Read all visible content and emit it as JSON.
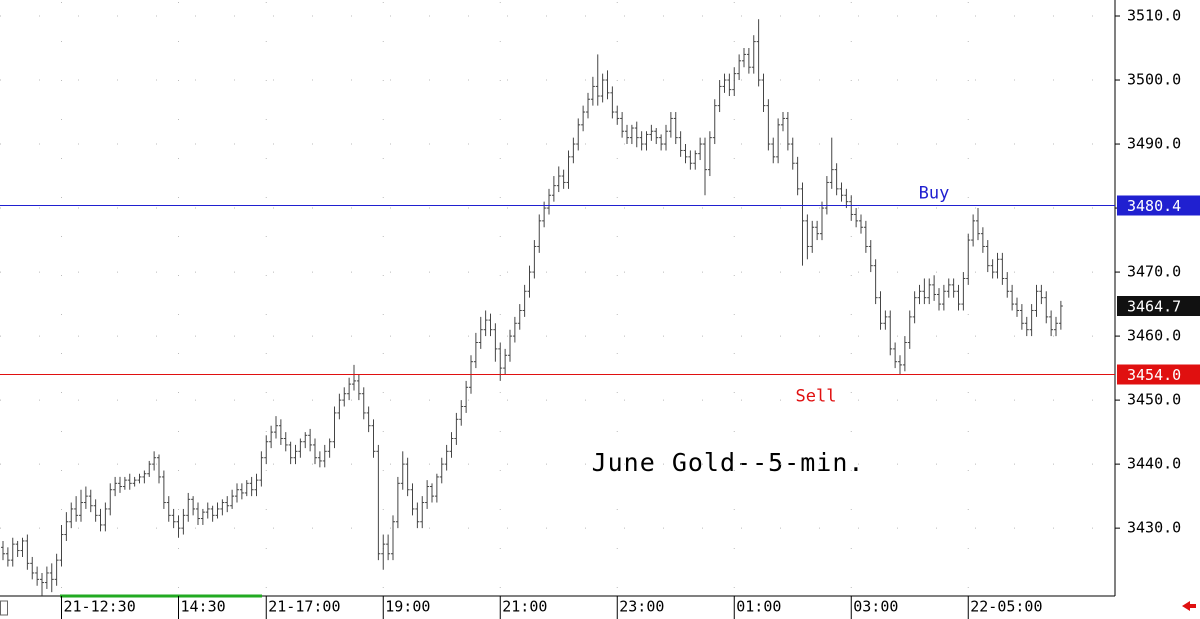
{
  "chart_data": {
    "type": "ohlc",
    "title": "June Gold--5-min.",
    "categories": [
      null,
      null,
      null,
      null,
      null,
      null,
      null,
      null,
      null,
      null,
      null,
      null,
      "21-12:30",
      null,
      null,
      null,
      null,
      null,
      null,
      null,
      null,
      null,
      null,
      null,
      null,
      null,
      null,
      null,
      null,
      null,
      null,
      null,
      null,
      null,
      null,
      null,
      "14:30",
      null,
      null,
      null,
      null,
      null,
      null,
      null,
      null,
      null,
      null,
      null,
      null,
      null,
      null,
      null,
      null,
      null,
      "21-17:00",
      null,
      null,
      null,
      null,
      null,
      null,
      null,
      null,
      null,
      null,
      null,
      null,
      null,
      null,
      null,
      null,
      null,
      null,
      null,
      null,
      null,
      null,
      null,
      "19:00",
      null,
      null,
      null,
      null,
      null,
      null,
      null,
      null,
      null,
      null,
      null,
      null,
      null,
      null,
      null,
      null,
      null,
      null,
      null,
      null,
      null,
      null,
      null,
      "21:00",
      null,
      null,
      null,
      null,
      null,
      null,
      null,
      null,
      null,
      null,
      null,
      null,
      null,
      null,
      null,
      null,
      null,
      null,
      null,
      null,
      null,
      null,
      null,
      "23:00",
      null,
      null,
      null,
      null,
      null,
      null,
      null,
      null,
      null,
      null,
      null,
      null,
      null,
      null,
      null,
      null,
      null,
      null,
      null,
      null,
      null,
      null,
      null,
      "01:00",
      null,
      null,
      null,
      null,
      null,
      null,
      null,
      null,
      null,
      null,
      null,
      null,
      null,
      null,
      null,
      null,
      null,
      null,
      null,
      null,
      null,
      null,
      null,
      "03:00",
      null,
      null,
      null,
      null,
      null,
      null,
      null,
      null,
      null,
      null,
      null,
      null,
      null,
      null,
      null,
      null,
      null,
      null,
      null,
      null,
      null,
      null,
      null,
      "22-05:00",
      null,
      null,
      null,
      null,
      null,
      null,
      null,
      null,
      null,
      null,
      null,
      null,
      null,
      null,
      null,
      null,
      null,
      null,
      null
    ],
    "open": [
      3427,
      3426,
      3425,
      3427.5,
      3426.5,
      3428,
      3424.5,
      3423,
      3422,
      3421.5,
      3423,
      3422,
      3425,
      3429,
      3431,
      3433,
      3432,
      3434,
      3435,
      3433.5,
      3432,
      3430.5,
      3433,
      3436,
      3437,
      3436.5,
      3437.5,
      3437,
      3437.5,
      3438,
      3438.5,
      3440,
      3441,
      3438,
      3434,
      3432,
      3431,
      3430,
      3432,
      3434.5,
      3433,
      3431.5,
      3432.5,
      3433,
      3432,
      3433,
      3434,
      3433.5,
      3435,
      3436,
      3435.5,
      3437,
      3436,
      3437.5,
      3441,
      3443.5,
      3445,
      3446,
      3444,
      3443,
      3441,
      3442,
      3443.5,
      3444.5,
      3443,
      3441,
      3440.5,
      3442,
      3443.5,
      3448,
      3450,
      3451,
      3452.5,
      3453,
      3451,
      3448,
      3446,
      3442,
      3426,
      3427.5,
      3426,
      3431,
      3437,
      3440,
      3436,
      3433,
      3431,
      3434,
      3436.5,
      3435,
      3438,
      3440,
      3442,
      3444,
      3447,
      3449,
      3452,
      3456,
      3459,
      3461,
      3462.5,
      3461,
      3458,
      3455,
      3457,
      3460,
      3462,
      3464,
      3467,
      3470,
      3474,
      3478,
      3480,
      3482,
      3483.5,
      3485,
      3484,
      3488,
      3490,
      3493,
      3495,
      3497,
      3499,
      3497.5,
      3500,
      3498,
      3495,
      3494,
      3492,
      3491,
      3492.5,
      3491,
      3490,
      3491.5,
      3492,
      3491,
      3490,
      3492,
      3494,
      3491,
      3489,
      3488,
      3487,
      3488.5,
      3490,
      3486,
      3491,
      3496,
      3499,
      3500,
      3498.5,
      3501,
      3503,
      3504,
      3502,
      3506,
      3500,
      3496,
      3490,
      3488,
      3493,
      3494,
      3490,
      3487,
      3483,
      3478,
      3474,
      3477,
      3476,
      3480,
      3484,
      3486,
      3483,
      3482,
      3481,
      3479,
      3478,
      3477,
      3474,
      3471,
      3466,
      3462,
      3463,
      3458,
      3456,
      3455.5,
      3459,
      3463,
      3466,
      3467,
      3466,
      3468,
      3466.5,
      3465,
      3467,
      3468,
      3467,
      3465,
      3469,
      3475,
      3478,
      3476,
      3474,
      3471,
      3470,
      3472,
      3469,
      3467,
      3465,
      3464,
      3462,
      3461,
      3464,
      3467,
      3466,
      3463,
      3461,
      3462
    ],
    "high": [
      3428,
      3427,
      3428.5,
      3428,
      3428.5,
      3429,
      3425.5,
      3424,
      3423,
      3424,
      3424.5,
      3426,
      3430.5,
      3432.5,
      3434,
      3435,
      3436,
      3436.5,
      3436,
      3434.5,
      3433,
      3434,
      3437,
      3438,
      3438,
      3438,
      3438.5,
      3438,
      3438.5,
      3439,
      3440.5,
      3442,
      3441.5,
      3439,
      3435,
      3433,
      3432,
      3433,
      3435.5,
      3435,
      3434,
      3433,
      3434,
      3433.5,
      3434,
      3434.5,
      3435,
      3436,
      3437,
      3437,
      3437.5,
      3438,
      3438.5,
      3442,
      3444.5,
      3446,
      3447.5,
      3447,
      3445,
      3443.5,
      3443,
      3444,
      3445,
      3445.5,
      3444,
      3442,
      3443,
      3444,
      3449,
      3451,
      3452,
      3453.5,
      3455.5,
      3454,
      3452,
      3449,
      3447,
      3443,
      3429,
      3429,
      3432,
      3438,
      3442,
      3441,
      3437,
      3434,
      3435,
      3437.5,
      3437,
      3438.5,
      3441,
      3443,
      3445,
      3448,
      3450,
      3453,
      3457,
      3460.5,
      3463,
      3464,
      3463.5,
      3462,
      3459,
      3458,
      3461,
      3463,
      3465,
      3468,
      3471,
      3475,
      3479,
      3481,
      3483,
      3485,
      3486.5,
      3486,
      3489,
      3491,
      3494,
      3496,
      3498,
      3500.5,
      3504,
      3501,
      3501.5,
      3499,
      3496,
      3495,
      3493,
      3493,
      3493.5,
      3492,
      3492,
      3493,
      3492.5,
      3491.5,
      3493,
      3495,
      3495,
      3492,
      3490,
      3489,
      3489,
      3491,
      3491,
      3492,
      3497,
      3500,
      3501,
      3501,
      3502,
      3504,
      3505,
      3505,
      3507,
      3509.5,
      3501,
      3497,
      3491,
      3494,
      3495,
      3495,
      3491,
      3488,
      3484,
      3479,
      3478,
      3478,
      3481,
      3485,
      3491,
      3487,
      3484,
      3483,
      3482,
      3480,
      3479,
      3478,
      3475,
      3472,
      3467,
      3464,
      3464,
      3459,
      3457,
      3460,
      3464,
      3467,
      3468,
      3469,
      3469,
      3469.5,
      3467.5,
      3468,
      3469,
      3469,
      3468,
      3470,
      3476,
      3479,
      3480,
      3477,
      3475,
      3472,
      3473,
      3473,
      3470,
      3468,
      3466,
      3465,
      3463,
      3465,
      3468,
      3468,
      3467,
      3464,
      3463,
      3465.5
    ],
    "low": [
      3425,
      3424,
      3424,
      3425.5,
      3425.5,
      3423.5,
      3422,
      3421,
      3419.5,
      3420.5,
      3420,
      3421,
      3424,
      3428,
      3430,
      3431,
      3431,
      3433,
      3432.5,
      3431,
      3429.5,
      3429.5,
      3432,
      3435,
      3435.5,
      3436,
      3436,
      3436.5,
      3437,
      3437,
      3438,
      3439,
      3437,
      3433,
      3431,
      3430,
      3428.5,
      3429,
      3431,
      3432,
      3430.5,
      3430.5,
      3431.5,
      3431,
      3431.5,
      3432,
      3432.5,
      3433,
      3434,
      3434.5,
      3435,
      3435,
      3435,
      3436.5,
      3440,
      3442.5,
      3444,
      3443,
      3442,
      3440,
      3440,
      3441,
      3442.5,
      3442,
      3440,
      3439.5,
      3439.5,
      3441,
      3442.5,
      3447,
      3449,
      3450,
      3451.5,
      3450,
      3447,
      3445,
      3441,
      3425,
      3423.5,
      3425,
      3425,
      3430,
      3436,
      3435,
      3432,
      3430,
      3430,
      3433,
      3434,
      3434,
      3437,
      3439,
      3441,
      3443,
      3446,
      3448,
      3451,
      3455,
      3458,
      3460,
      3460,
      3456,
      3453,
      3454,
      3456,
      3459,
      3461,
      3463,
      3466,
      3469,
      3473,
      3477,
      3479,
      3481,
      3482.5,
      3483,
      3483,
      3487,
      3489,
      3492,
      3494,
      3496,
      3496,
      3496.5,
      3497,
      3494,
      3493,
      3491,
      3490,
      3490,
      3489.5,
      3489,
      3489,
      3490.5,
      3490,
      3489,
      3489,
      3491,
      3490,
      3488,
      3487,
      3486,
      3486,
      3487.5,
      3482,
      3485,
      3490,
      3495,
      3498,
      3497.5,
      3497.5,
      3500,
      3502,
      3501,
      3501,
      3499,
      3495,
      3489,
      3487,
      3487,
      3492,
      3489,
      3486,
      3482,
      3471,
      3472,
      3473,
      3475,
      3475,
      3479,
      3483,
      3482,
      3481,
      3480,
      3478,
      3477,
      3476,
      3473,
      3470,
      3465,
      3461,
      3461,
      3457,
      3455,
      3454,
      3454.5,
      3458,
      3462,
      3465,
      3465,
      3465,
      3465.5,
      3464,
      3464,
      3466,
      3466,
      3464,
      3464,
      3468,
      3474,
      3475,
      3473,
      3470,
      3469,
      3469,
      3468,
      3466,
      3464,
      3463,
      3461,
      3460,
      3460,
      3463,
      3465,
      3462,
      3460,
      3460,
      3461
    ],
    "close": [
      3426,
      3425,
      3427.5,
      3426.5,
      3428,
      3424.5,
      3423,
      3422,
      3421.5,
      3423,
      3422,
      3425,
      3429,
      3431,
      3433,
      3432,
      3434,
      3435,
      3433.5,
      3432,
      3430.5,
      3433,
      3436,
      3437,
      3436.5,
      3437.5,
      3437,
      3437.5,
      3438,
      3438.5,
      3440,
      3441,
      3438,
      3434,
      3432,
      3431,
      3430,
      3432,
      3434.5,
      3433,
      3431.5,
      3432.5,
      3433,
      3432,
      3433,
      3434,
      3433.5,
      3435,
      3436,
      3435.5,
      3437,
      3436,
      3437.5,
      3441,
      3443.5,
      3445,
      3446,
      3444,
      3443,
      3441,
      3442,
      3443.5,
      3444.5,
      3443,
      3441,
      3440.5,
      3442,
      3443.5,
      3448,
      3450,
      3451,
      3452.5,
      3453,
      3451,
      3448,
      3446,
      3442,
      3426,
      3427.5,
      3426,
      3431,
      3437,
      3440,
      3436,
      3433,
      3431,
      3434,
      3436.5,
      3435,
      3438,
      3440,
      3442,
      3444,
      3447,
      3449,
      3452,
      3456,
      3459,
      3461,
      3462.5,
      3461,
      3458,
      3455,
      3457,
      3460,
      3462,
      3464,
      3467,
      3470,
      3474,
      3478,
      3480,
      3482,
      3483.5,
      3485,
      3484,
      3488,
      3490,
      3493,
      3495,
      3497,
      3499,
      3497.5,
      3500,
      3498,
      3495,
      3494,
      3492,
      3491,
      3492.5,
      3491,
      3490,
      3491.5,
      3492,
      3491,
      3490,
      3492,
      3494,
      3491,
      3489,
      3488,
      3487,
      3488.5,
      3490,
      3486,
      3491,
      3496,
      3499,
      3500,
      3498.5,
      3501,
      3503,
      3504,
      3502,
      3506,
      3500,
      3496,
      3490,
      3488,
      3493,
      3494,
      3490,
      3487,
      3483,
      3478,
      3474,
      3477,
      3476,
      3480,
      3484,
      3486,
      3483,
      3482,
      3481,
      3479,
      3478,
      3477,
      3474,
      3471,
      3466,
      3462,
      3463,
      3458,
      3456,
      3455.5,
      3459,
      3463,
      3466,
      3467,
      3466,
      3468,
      3466.5,
      3465,
      3467,
      3468,
      3467,
      3465,
      3469,
      3475,
      3478,
      3476,
      3474,
      3471,
      3470,
      3472,
      3469,
      3467,
      3465,
      3464,
      3462,
      3461,
      3464,
      3467,
      3466,
      3463,
      3461,
      3462,
      3464.7
    ],
    "color": "#444444",
    "ylim": [
      3419.4,
      3512.5
    ],
    "yticks": [
      {
        "value": 3430,
        "label": "3430.0"
      },
      {
        "value": 3440,
        "label": "3440.0"
      },
      {
        "value": 3450,
        "label": "3450.0"
      },
      {
        "value": 3460,
        "label": "3460.0"
      },
      {
        "value": 3470,
        "label": "3470.0"
      },
      {
        "value": 3480,
        "label": "3480.0"
      },
      {
        "value": 3490,
        "label": "3490.0"
      },
      {
        "value": 3500,
        "label": "3500.0"
      },
      {
        "value": 3510,
        "label": "3510.0"
      }
    ],
    "grid": true,
    "levels": [
      {
        "name": "Buy",
        "value": 3480.4,
        "color": "#2020d0"
      },
      {
        "name": "Sell",
        "value": 3454.0,
        "value_label": "3454.0",
        "color": "#e01010"
      }
    ]
  }
}
